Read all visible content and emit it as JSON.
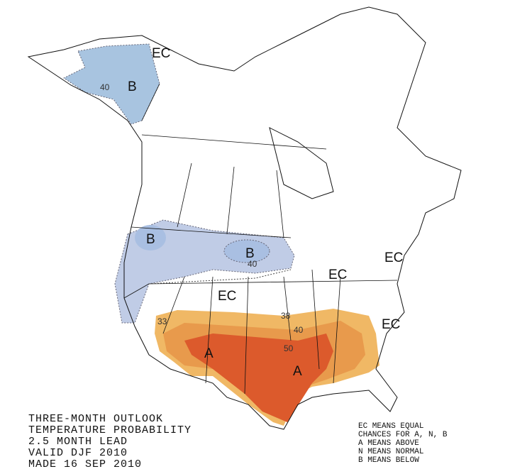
{
  "title_block": {
    "lines": [
      "THREE-MONTH OUTLOOK",
      "TEMPERATURE PROBABILITY",
      "2.5 MONTH LEAD",
      "VALID DJF 2010",
      "MADE 16 SEP 2010"
    ]
  },
  "legend": {
    "lines": [
      "EC MEANS EQUAL",
      "CHANCES FOR A, N, B",
      "A MEANS ABOVE",
      "N MEANS NORMAL",
      "B MEANS BELOW"
    ]
  },
  "region_labels": [
    "EC",
    "B",
    "B",
    "B",
    "EC",
    "EC",
    "EC",
    "EC",
    "A",
    "A"
  ],
  "contour_labels": [
    40,
    40,
    33,
    38,
    40,
    50
  ]
}
